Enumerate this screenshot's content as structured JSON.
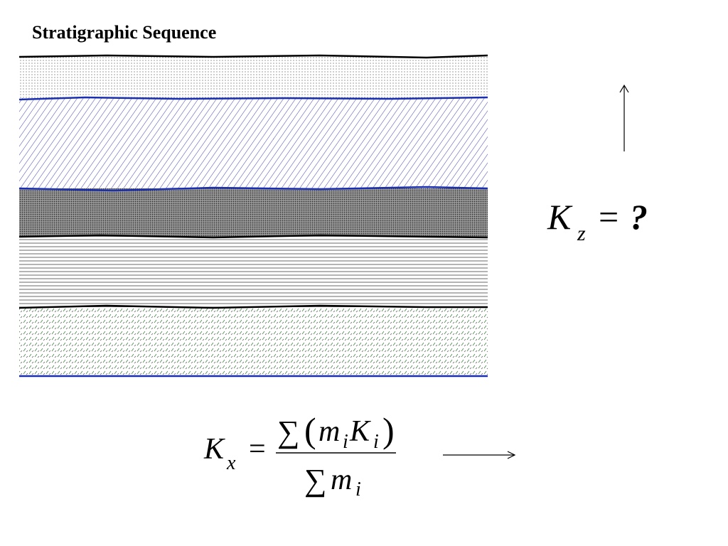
{
  "title": "Stratigraphic Sequence",
  "kz": {
    "symbol": "K",
    "sub": "z",
    "equals": "=",
    "result": "?"
  },
  "kx": {
    "symbol": "K",
    "sub": "x",
    "equals": "=",
    "numerator": {
      "sum": "∑",
      "open": "(",
      "m": "m",
      "m_sub": "i",
      "k": "K",
      "k_sub": "i",
      "close": ")"
    },
    "denominator": {
      "sum": "∑",
      "m": "m",
      "m_sub": "i"
    }
  }
}
